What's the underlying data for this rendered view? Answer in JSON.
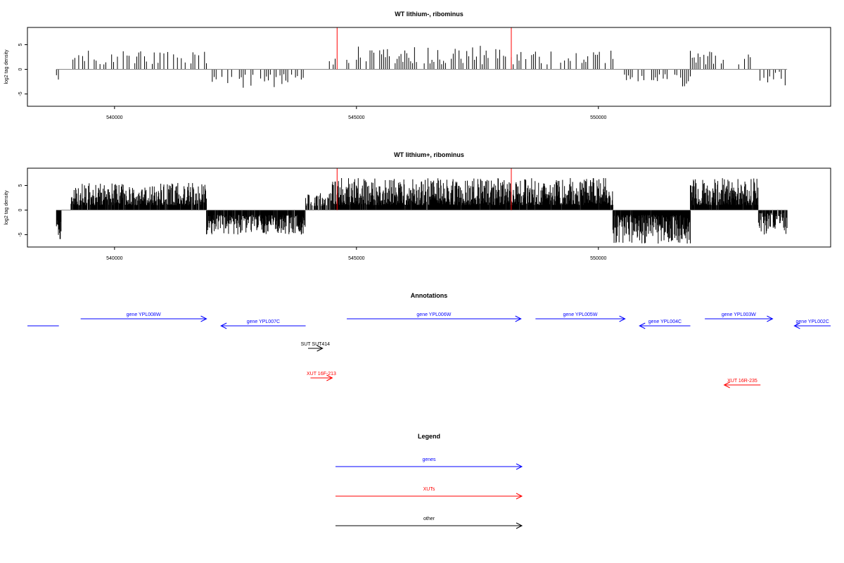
{
  "chart_data": [
    {
      "type": "bar",
      "title": "WT lithium-, ribominus",
      "ylabel": "log2 tag density",
      "xlabel": "",
      "xlim": [
        538200,
        554800
      ],
      "ylim": [
        -7.5,
        8.5
      ],
      "x_ticks": [
        540000,
        545000,
        550000
      ],
      "y_ticks": [
        -5,
        0,
        5
      ],
      "tick_labels": {
        "x": [
          "540000",
          "545000",
          "550000"
        ],
        "y": [
          "-5",
          "0",
          "5"
        ]
      },
      "grid": false,
      "highlight_lines": [
        544600,
        548200
      ],
      "highlight_color": "#ff0000",
      "bar_color": "#000000",
      "baseline_color": "#888888",
      "baseline_extent": [
        538800,
        553900
      ],
      "x_step": 40,
      "segments": [
        {
          "from": 538800,
          "to": 538850,
          "sign": -1,
          "min": 1.2,
          "max": 3.0,
          "density": 1.0
        },
        {
          "from": 539100,
          "to": 541900,
          "sign": 1,
          "min": 1.0,
          "max": 4.0,
          "density": 0.55
        },
        {
          "from": 541900,
          "to": 543950,
          "sign": -1,
          "min": 1.0,
          "max": 4.0,
          "density": 0.55
        },
        {
          "from": 544400,
          "to": 544650,
          "sign": 1,
          "min": 0.8,
          "max": 2.5,
          "density": 0.4
        },
        {
          "from": 544800,
          "to": 548400,
          "sign": 1,
          "min": 1.0,
          "max": 4.8,
          "density": 0.65
        },
        {
          "from": 548500,
          "to": 550300,
          "sign": 1,
          "min": 1.0,
          "max": 3.8,
          "density": 0.45
        },
        {
          "from": 550500,
          "to": 551900,
          "sign": -1,
          "min": 1.0,
          "max": 3.5,
          "density": 0.75
        },
        {
          "from": 551900,
          "to": 553300,
          "sign": 1,
          "min": 1.0,
          "max": 3.8,
          "density": 0.6
        },
        {
          "from": 553300,
          "to": 553900,
          "sign": -1,
          "min": 0.5,
          "max": 3.3,
          "density": 0.6
        }
      ]
    },
    {
      "type": "bar",
      "title": "WT lithium+, ribominus",
      "ylabel": "log2 tag density",
      "xlabel": "",
      "xlim": [
        538200,
        554800
      ],
      "ylim": [
        -7.5,
        8.5
      ],
      "x_ticks": [
        540000,
        545000,
        550000
      ],
      "y_ticks": [
        -5,
        0,
        5
      ],
      "tick_labels": {
        "x": [
          "540000",
          "545000",
          "550000"
        ],
        "y": [
          "-5",
          "0",
          "5"
        ]
      },
      "grid": false,
      "highlight_lines": [
        544600,
        548200
      ],
      "highlight_color": "#ff0000",
      "bar_color": "#000000",
      "baseline_color": "#888888",
      "baseline_extent": [
        538800,
        553900
      ],
      "x_step": 8,
      "segments": [
        {
          "from": 538800,
          "to": 538900,
          "sign": -1,
          "min": 2.0,
          "max": 6.0,
          "density": 1.0
        },
        {
          "from": 539100,
          "to": 541900,
          "sign": 1,
          "min": 1.0,
          "max": 5.5,
          "density": 0.9
        },
        {
          "from": 541900,
          "to": 543950,
          "sign": -1,
          "min": 1.0,
          "max": 5.0,
          "density": 0.9
        },
        {
          "from": 543950,
          "to": 544500,
          "sign": 1,
          "min": 0.8,
          "max": 3.5,
          "density": 0.6
        },
        {
          "from": 544500,
          "to": 550300,
          "sign": 1,
          "min": 1.0,
          "max": 6.5,
          "density": 0.97
        },
        {
          "from": 550300,
          "to": 551900,
          "sign": -1,
          "min": 1.0,
          "max": 6.8,
          "density": 0.97
        },
        {
          "from": 551900,
          "to": 553300,
          "sign": 1,
          "min": 1.0,
          "max": 6.5,
          "density": 0.95
        },
        {
          "from": 553300,
          "to": 553900,
          "sign": -1,
          "min": 0.5,
          "max": 5.0,
          "density": 0.8
        }
      ]
    }
  ],
  "annotations": {
    "title": "Annotations",
    "xlim": [
      538200,
      554800
    ],
    "colors": {
      "gene": "#0000ff",
      "xut": "#ff0000",
      "other": "#000000"
    },
    "features": [
      {
        "id": "gene-left-edge",
        "label": "",
        "kind": "gene",
        "start": 538200,
        "end": 538850,
        "strand": "none",
        "row": 1
      },
      {
        "id": "gene-ypl008w",
        "label": "gene YPL008W",
        "kind": "gene",
        "start": 539300,
        "end": 541900,
        "strand": "+",
        "row": 0
      },
      {
        "id": "gene-ypl007c",
        "label": "gene YPL007C",
        "kind": "gene",
        "start": 542200,
        "end": 543950,
        "strand": "-",
        "row": 1
      },
      {
        "id": "gene-ypl006w",
        "label": "gene YPL006W",
        "kind": "gene",
        "start": 544800,
        "end": 548400,
        "strand": "+",
        "row": 0
      },
      {
        "id": "gene-ypl005w",
        "label": "gene YPL005W",
        "kind": "gene",
        "start": 548700,
        "end": 550550,
        "strand": "+",
        "row": 0
      },
      {
        "id": "gene-ypl004c",
        "label": "gene YPL004C",
        "kind": "gene",
        "start": 550850,
        "end": 551900,
        "strand": "-",
        "row": 1
      },
      {
        "id": "gene-ypl003w",
        "label": "gene YPL003W",
        "kind": "gene",
        "start": 552200,
        "end": 553600,
        "strand": "+",
        "row": 0
      },
      {
        "id": "gene-ypl002c",
        "label": "gene YPL002C",
        "kind": "gene",
        "start": 554050,
        "end": 554800,
        "strand": "-",
        "row": 1
      },
      {
        "id": "sut414",
        "label": "SUT SUT414",
        "kind": "other",
        "start": 544000,
        "end": 544300,
        "strand": "+",
        "row": 2
      },
      {
        "id": "xut-16f-213",
        "label": "XUT 16F-213",
        "kind": "xut",
        "start": 544050,
        "end": 544500,
        "strand": "+",
        "row": 3
      },
      {
        "id": "xut-16r-235",
        "label": "XUT 16R-235",
        "kind": "xut",
        "start": 552600,
        "end": 553350,
        "strand": "-",
        "row": 4
      }
    ]
  },
  "legend": {
    "title": "Legend",
    "items": [
      {
        "label": "genes",
        "color": "#0000ff"
      },
      {
        "label": "XUTs",
        "color": "#ff0000"
      },
      {
        "label": "other",
        "color": "#000000"
      }
    ]
  }
}
